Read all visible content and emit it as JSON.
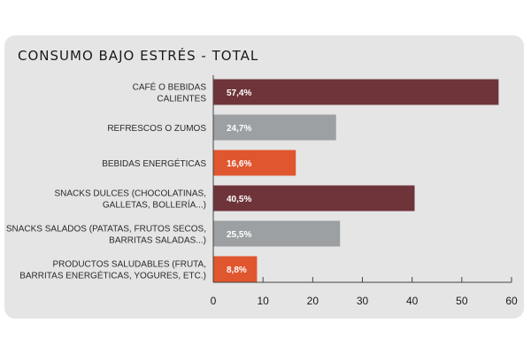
{
  "chart_data": {
    "type": "bar",
    "orientation": "horizontal",
    "title": "CONSUMO BAJO ESTRÉS - TOTAL",
    "categories": [
      [
        "CAFÉ O BEBIDAS",
        "CALIENTES"
      ],
      [
        "REFRESCOS O ZUMOS"
      ],
      [
        "BEBIDAS ENERGÉTICAS"
      ],
      [
        "SNACKS DULCES (CHOCOLATINAS,",
        "GALLETAS, BOLLERÍA...)"
      ],
      [
        "SNACKS SALADOS (PATATAS, FRUTOS SECOS,",
        "BARRITAS SALADAS...)"
      ],
      [
        "PRODUCTOS SALUDABLES (FRUTA,",
        "BARRITAS ENERGÉTICAS, YOGURES, ETC.)"
      ]
    ],
    "values": [
      57.4,
      24.7,
      16.6,
      40.5,
      25.5,
      8.8
    ],
    "data_labels": [
      "57,4%",
      "24,7%",
      "16,6%",
      "40,5%",
      "25,5%",
      "8,8%"
    ],
    "colors": [
      "#6e343a",
      "#9ca0a3",
      "#e0562f",
      "#6e343a",
      "#9ca0a3",
      "#e0562f"
    ],
    "xlim": [
      0,
      60
    ],
    "xticks": [
      0,
      10,
      20,
      30,
      40,
      50,
      60
    ],
    "xlabel": "",
    "ylabel": "",
    "grid": false,
    "legend": "none"
  }
}
